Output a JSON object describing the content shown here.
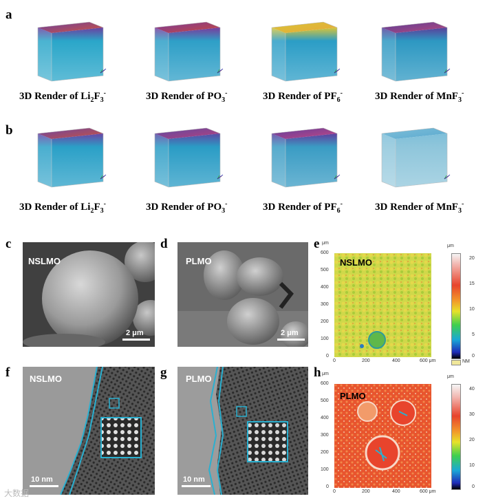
{
  "panel_labels": {
    "a": "a",
    "b": "b",
    "c": "c",
    "d": "d",
    "e": "e",
    "f": "f",
    "g": "g",
    "h": "h"
  },
  "renders_a": [
    {
      "prefix": "3D Render of Li",
      "sub1": "2",
      "mid": "F",
      "sub2": "3",
      "sup": "-",
      "top": "#6b3fa0",
      "topb": "#d0543e",
      "body": "#2aa6c9"
    },
    {
      "prefix": "3D Render of PO",
      "sub1": "",
      "mid": "",
      "sub2": "3",
      "sup": "-",
      "top": "#7a3a9c",
      "topb": "#c8483c",
      "body": "#2e9fc7"
    },
    {
      "prefix": "3D Render of PF",
      "sub1": "",
      "mid": "",
      "sub2": "6",
      "sup": "-",
      "top": "#d9c437",
      "topb": "#e6a93a",
      "body": "#2b9dc6"
    },
    {
      "prefix": "3D Render of MnF",
      "sub1": "",
      "mid": "",
      "sub2": "3",
      "sup": "-",
      "top": "#5a3f9a",
      "topb": "#b8487a",
      "body": "#2d98c2"
    }
  ],
  "renders_b": [
    {
      "prefix": "3D Render of Li",
      "sub1": "2",
      "mid": "F",
      "sub2": "3",
      "sup": "-",
      "top": "#6a45a5",
      "topb": "#c9523f",
      "body": "#2aa0c7"
    },
    {
      "prefix": "3D Render of PO",
      "sub1": "",
      "mid": "",
      "sub2": "3",
      "sup": "-",
      "top": "#5b4aa4",
      "topb": "#b8407c",
      "body": "#2a9cc5"
    },
    {
      "prefix": "3D Render of PF",
      "sub1": "",
      "mid": "",
      "sub2": "6",
      "sup": "-",
      "top": "#5f3f9e",
      "topb": "#c44683",
      "body": "#3a9cc4"
    },
    {
      "prefix": "3D Render of MnF",
      "sub1": "",
      "mid": "",
      "sub2": "3",
      "sup": "-",
      "top": "#7fbfd9",
      "topb": "#5aa9cf",
      "body": "#8fc6db"
    }
  ],
  "sem_c": {
    "tag": "NSLMO",
    "scale": "2 μm"
  },
  "sem_d": {
    "tag": "PLMO",
    "scale": "2 μm"
  },
  "tem_f": {
    "tag": "NSLMO",
    "scale": "10 nm"
  },
  "tem_g": {
    "tag": "PLMO",
    "scale": "10 nm"
  },
  "map_e": {
    "tag": "NSLMO",
    "unit": "μm",
    "y_ticks": [
      "600",
      "500",
      "400",
      "300",
      "200",
      "100",
      "0"
    ],
    "x_ticks": [
      "0",
      "200",
      "400",
      "600 μm"
    ],
    "cbar_unit": "μm",
    "cbar_ticks": [
      "20",
      "15",
      "10",
      "5",
      "0"
    ],
    "nm_label": "NM"
  },
  "map_h": {
    "tag": "PLMO",
    "unit": "μm",
    "y_ticks": [
      "600",
      "500",
      "400",
      "300",
      "200",
      "100",
      "0"
    ],
    "x_ticks": [
      "0",
      "200",
      "400",
      "600 μm"
    ],
    "cbar_unit": "μm",
    "cbar_ticks": [
      "40",
      "30",
      "20",
      "10",
      "0"
    ]
  },
  "watermark": "大数据"
}
